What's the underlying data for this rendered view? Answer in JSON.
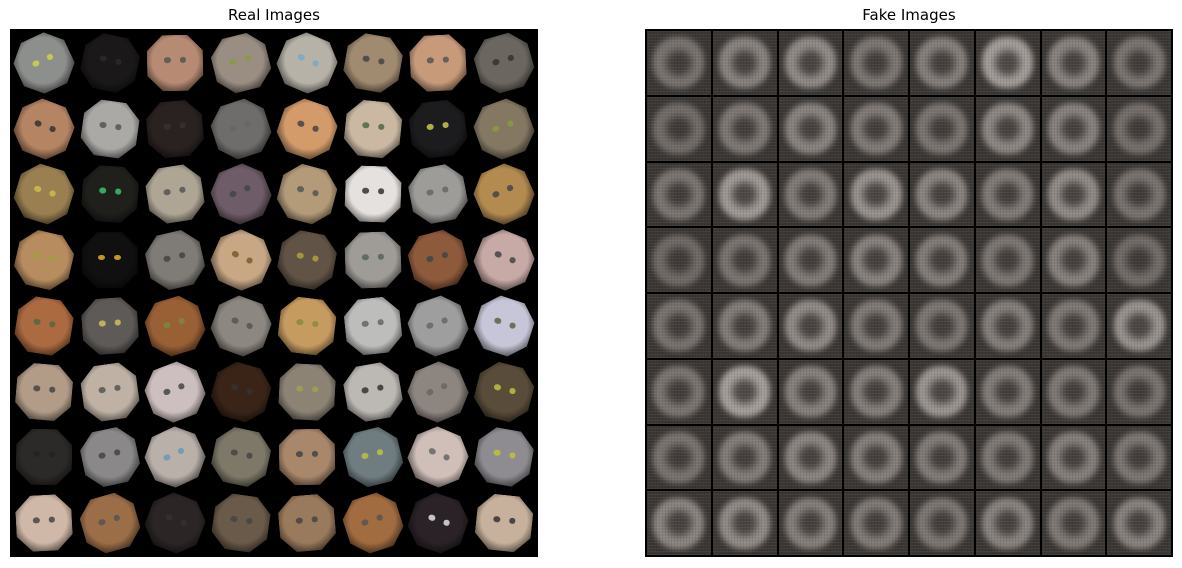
{
  "panels": {
    "real": {
      "title": "Real Images"
    },
    "fake": {
      "title": "Fake Images"
    }
  },
  "grid": {
    "rows": 8,
    "cols": 8
  },
  "real_tile_colors": [
    "#8d8f8c",
    "#1a1818",
    "#b78a74",
    "#9a8e83",
    "#b7b2a8",
    "#a08a70",
    "#c79a7a",
    "#6b665f",
    "#b58463",
    "#aaa9a6",
    "#2a2220",
    "#6f6d6b",
    "#d39b6a",
    "#cab8a2",
    "#1c1c1e",
    "#847863",
    "#9a8050",
    "#1f1f1c",
    "#aea595",
    "#6e5c68",
    "#b39a78",
    "#e5e1de",
    "#9e9c99",
    "#b38a50",
    "#b78c5e",
    "#101010",
    "#7f7b76",
    "#c7a784",
    "#615446",
    "#9f9c97",
    "#8e5a3c",
    "#c7a9a6",
    "#ab6a40",
    "#5d5a57",
    "#9a6035",
    "#8c8780",
    "#c69b60",
    "#bdbdbc",
    "#9e9e9e",
    "#c6c6d8",
    "#b29c88",
    "#bfb2a4",
    "#cdbfc0",
    "#3a2418",
    "#8c8375",
    "#bcb8b4",
    "#8d8580",
    "#5a4c3a",
    "#2c2a28",
    "#8a8888",
    "#b9b0aa",
    "#7d7868",
    "#a8876a",
    "#6f7d80",
    "#cfbfb8",
    "#8e8c90",
    "#d0b8a8",
    "#9c6e48",
    "#2b2625",
    "#6a5a4a",
    "#9a7a5c",
    "#a06c40",
    "#2a2226",
    "#c7b19c"
  ],
  "real_eye_colors": [
    "#cfd24a",
    "#2a2a2a",
    "#555555",
    "#8a9a40",
    "#7aa8c8",
    "#444444",
    "#555555",
    "#333333",
    "#333333",
    "#555555",
    "#333333",
    "#666666",
    "#444444",
    "#556644",
    "#c8c84a",
    "#889944",
    "#c8c050",
    "#3fbf6a",
    "#555555",
    "#444444",
    "#555555",
    "#333333",
    "#666666",
    "#444444",
    "#a0a040",
    "#e0b020",
    "#444444",
    "#7a5a2a",
    "#b0a040",
    "#556655",
    "#444444",
    "#444444",
    "#556644",
    "#d0c060",
    "#7a8a3a",
    "#555555",
    "#8a8a40",
    "#666666",
    "#666666",
    "#556644",
    "#444444",
    "#555555",
    "#444444",
    "#333333",
    "#a0a050",
    "#333333",
    "#666666",
    "#c0c040",
    "#222222",
    "#444444",
    "#6a9ab0",
    "#444444",
    "#444444",
    "#c0c040",
    "#666666",
    "#c0c040",
    "#444444",
    "#555555",
    "#333333",
    "#444444",
    "#444444",
    "#555555",
    "#e0e0e0",
    "#333333"
  ],
  "fake_tile_tones": [
    "#7a7470",
    "#8a8480",
    "#928c88",
    "#7e7874",
    "#86807c",
    "#a49e9a",
    "#8a8480",
    "#7c7672",
    "#736d69",
    "#7f7975",
    "#8a8480",
    "#827c78",
    "#7c7672",
    "#8e8884",
    "#888280",
    "#76706c",
    "#7c7672",
    "#a09a96",
    "#827c78",
    "#9a9490",
    "#8c8682",
    "#827c78",
    "#928c88",
    "#7a7470",
    "#716b67",
    "#7b7571",
    "#827c78",
    "#8a8480",
    "#847e7a",
    "#7e7874",
    "#88827e",
    "#736d69",
    "#7a7470",
    "#847e7a",
    "#928c88",
    "#827c78",
    "#7e7874",
    "#86807c",
    "#807a76",
    "#9a9490",
    "#7c7672",
    "#a6a09c",
    "#88827e",
    "#86807c",
    "#9c9692",
    "#847e7a",
    "#807a76",
    "#7a7470",
    "#7a7470",
    "#847e7a",
    "#8c8682",
    "#86807c",
    "#827c78",
    "#807a76",
    "#86807c",
    "#7e7874",
    "#8c8682",
    "#928c88",
    "#86807c",
    "#827c78",
    "#7e7874",
    "#8a8480",
    "#807a76",
    "#8a8480"
  ]
}
